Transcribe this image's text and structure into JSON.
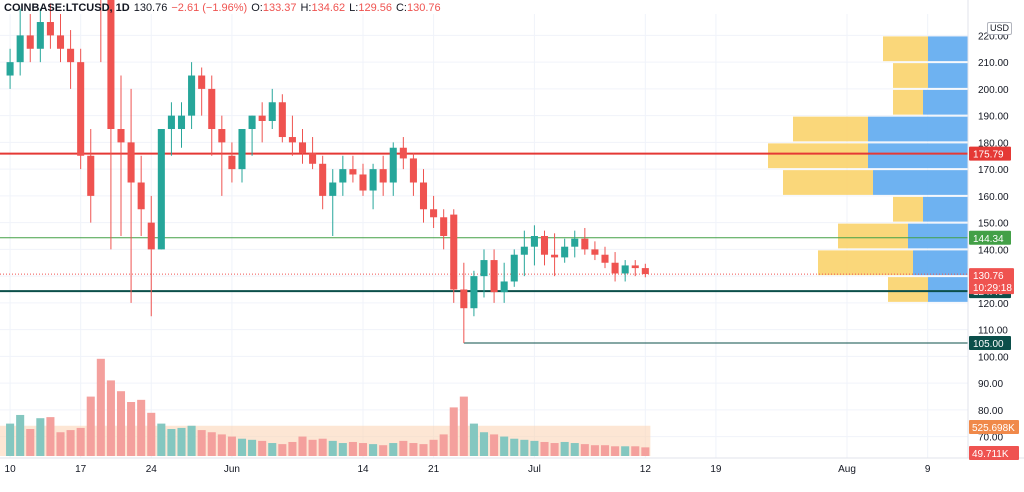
{
  "header": {
    "symbol": "COINBASE:LTCUSD, 1D",
    "price": "130.76",
    "change": "−2.61 (−1.96%)",
    "open_label": "O:",
    "open": "133.37",
    "high_label": "H:",
    "high": "134.62",
    "low_label": "L:",
    "low": "129.56",
    "close_label": "C:",
    "close": "130.76",
    "currency": "USD"
  },
  "colors": {
    "up": "#26a69a",
    "down": "#ef5350",
    "vol_up": "#84c7c0",
    "vol_down": "#f4a09d",
    "vp_up": "#5eaaf0",
    "vp_down": "#f9d36b",
    "resistance": "#e53935",
    "support_upper": "#43a047",
    "support_lower": "#0b4f4a",
    "price_line": "#ef5350",
    "vol_ma_fill": "#fbd1b0"
  },
  "chart_data": {
    "type": "candlestick",
    "y_axis": {
      "ticks": [
        70,
        80,
        90,
        100,
        110,
        120,
        130,
        140,
        150,
        160,
        170,
        180,
        190,
        200,
        210,
        220
      ],
      "tick_labels": [
        "70.00",
        "80.00",
        "90.00",
        "100.00",
        "110.00",
        "120.00",
        "130.00",
        "140.00",
        "150.00",
        "160.00",
        "170.00",
        "180.00",
        "190.00",
        "200.00",
        "210.00",
        "220.00"
      ],
      "range": [
        62,
        228
      ],
      "scale": "linear"
    },
    "x_axis": {
      "labels": [
        {
          "text": "10",
          "day": 0
        },
        {
          "text": "17",
          "day": 7
        },
        {
          "text": "24",
          "day": 14
        },
        {
          "text": "Jun",
          "day": 22
        },
        {
          "text": "14",
          "day": 35
        },
        {
          "text": "21",
          "day": 42
        },
        {
          "text": "Jul",
          "day": 52
        },
        {
          "text": "12",
          "day": 63
        },
        {
          "text": "19",
          "day": 70
        },
        {
          "text": "Aug",
          "day": 83
        },
        {
          "text": "9",
          "day": 91
        }
      ],
      "start": "2021-05-10",
      "range": [
        -1,
        95
      ]
    },
    "candles": [
      [
        0,
        205,
        215,
        200,
        210
      ],
      [
        1,
        210,
        230,
        205,
        220
      ],
      [
        2,
        220,
        228,
        210,
        215
      ],
      [
        3,
        215,
        230,
        210,
        225
      ],
      [
        4,
        225,
        232,
        215,
        220
      ],
      [
        5,
        220,
        228,
        210,
        215
      ],
      [
        6,
        215,
        222,
        200,
        210
      ],
      [
        7,
        210,
        215,
        170,
        175
      ],
      [
        8,
        175,
        185,
        150,
        160
      ],
      [
        9,
        260,
        275,
        210,
        250
      ],
      [
        10,
        250,
        255,
        140,
        185
      ],
      [
        11,
        185,
        205,
        145,
        180
      ],
      [
        12,
        180,
        200,
        120,
        165
      ],
      [
        13,
        165,
        175,
        145,
        155
      ],
      [
        14,
        150,
        160,
        115,
        140
      ],
      [
        15,
        140,
        185,
        140,
        185
      ],
      [
        16,
        185,
        195,
        175,
        190
      ],
      [
        17,
        185,
        195,
        178,
        190
      ],
      [
        18,
        190,
        210,
        185,
        205
      ],
      [
        19,
        205,
        208,
        190,
        200
      ],
      [
        20,
        200,
        205,
        175,
        185
      ],
      [
        21,
        185,
        190,
        160,
        180
      ],
      [
        22,
        175,
        180,
        165,
        170
      ],
      [
        23,
        170,
        185,
        165,
        185
      ],
      [
        24,
        185,
        190,
        175,
        190
      ],
      [
        25,
        190,
        195,
        180,
        188
      ],
      [
        26,
        188,
        200,
        185,
        195
      ],
      [
        27,
        195,
        198,
        180,
        182
      ],
      [
        28,
        182,
        190,
        175,
        180
      ],
      [
        29,
        180,
        185,
        172,
        176
      ],
      [
        30,
        176,
        182,
        170,
        172
      ],
      [
        31,
        172,
        175,
        155,
        160
      ],
      [
        32,
        160,
        170,
        145,
        165
      ],
      [
        33,
        165,
        175,
        160,
        170
      ],
      [
        34,
        170,
        175,
        165,
        168
      ],
      [
        35,
        168,
        172,
        160,
        162
      ],
      [
        36,
        162,
        172,
        155,
        170
      ],
      [
        37,
        170,
        175,
        160,
        165
      ],
      [
        38,
        165,
        180,
        160,
        178
      ],
      [
        39,
        178,
        182,
        170,
        174
      ],
      [
        40,
        174,
        176,
        160,
        165
      ],
      [
        41,
        165,
        170,
        150,
        155
      ],
      [
        42,
        155,
        160,
        148,
        152
      ],
      [
        43,
        152,
        155,
        140,
        145
      ],
      [
        44,
        153,
        155,
        120,
        125
      ],
      [
        45,
        125,
        135,
        105,
        118
      ],
      [
        46,
        118,
        132,
        115,
        130
      ],
      [
        47,
        130,
        140,
        122,
        136
      ],
      [
        48,
        136,
        140,
        120,
        124
      ],
      [
        49,
        124,
        135,
        120,
        128
      ],
      [
        50,
        128,
        140,
        126,
        138
      ],
      [
        51,
        138,
        147,
        130,
        141
      ],
      [
        52,
        141,
        149,
        134,
        145
      ],
      [
        53,
        145,
        147,
        134,
        138
      ],
      [
        54,
        138,
        146,
        130,
        137
      ],
      [
        55,
        137,
        144,
        135,
        141
      ],
      [
        56,
        141,
        147,
        137,
        144
      ],
      [
        57,
        144,
        148,
        138,
        140
      ],
      [
        58,
        140,
        143,
        136,
        138
      ],
      [
        59,
        138,
        141,
        133,
        135
      ],
      [
        60,
        135,
        139,
        128,
        131
      ],
      [
        61,
        131,
        136,
        128,
        134
      ],
      [
        62,
        134,
        136,
        130,
        133
      ],
      [
        63,
        133,
        134.62,
        129.56,
        130.76
      ]
    ],
    "volume_mode": "relative",
    "volumes": [
      [
        0,
        0.3
      ],
      [
        1,
        0.38
      ],
      [
        2,
        0.25
      ],
      [
        3,
        0.35
      ],
      [
        4,
        0.36
      ],
      [
        5,
        0.22
      ],
      [
        6,
        0.24
      ],
      [
        7,
        0.26
      ],
      [
        8,
        0.55
      ],
      [
        9,
        0.9
      ],
      [
        10,
        0.7
      ],
      [
        11,
        0.6
      ],
      [
        12,
        0.5
      ],
      [
        13,
        0.52
      ],
      [
        14,
        0.4
      ],
      [
        15,
        0.3
      ],
      [
        16,
        0.25
      ],
      [
        17,
        0.26
      ],
      [
        18,
        0.28
      ],
      [
        19,
        0.24
      ],
      [
        20,
        0.22
      ],
      [
        21,
        0.2
      ],
      [
        22,
        0.18
      ],
      [
        23,
        0.16
      ],
      [
        24,
        0.15
      ],
      [
        25,
        0.14
      ],
      [
        26,
        0.12
      ],
      [
        27,
        0.11
      ],
      [
        28,
        0.13
      ],
      [
        29,
        0.18
      ],
      [
        30,
        0.15
      ],
      [
        31,
        0.16
      ],
      [
        32,
        0.14
      ],
      [
        33,
        0.12
      ],
      [
        34,
        0.13
      ],
      [
        35,
        0.12
      ],
      [
        36,
        0.11
      ],
      [
        37,
        0.1
      ],
      [
        38,
        0.12
      ],
      [
        39,
        0.14
      ],
      [
        40,
        0.12
      ],
      [
        41,
        0.11
      ],
      [
        42,
        0.15
      ],
      [
        43,
        0.2
      ],
      [
        44,
        0.45
      ],
      [
        45,
        0.55
      ],
      [
        46,
        0.3
      ],
      [
        47,
        0.22
      ],
      [
        48,
        0.2
      ],
      [
        49,
        0.18
      ],
      [
        50,
        0.16
      ],
      [
        51,
        0.15
      ],
      [
        52,
        0.14
      ],
      [
        53,
        0.13
      ],
      [
        54,
        0.12
      ],
      [
        55,
        0.13
      ],
      [
        56,
        0.12
      ],
      [
        57,
        0.11
      ],
      [
        58,
        0.1
      ],
      [
        59,
        0.1
      ],
      [
        60,
        0.09
      ],
      [
        61,
        0.09
      ],
      [
        62,
        0.09
      ],
      [
        63,
        0.08
      ]
    ],
    "volume_ma_level": 0.28,
    "horizontal_levels": [
      {
        "price": 175.79,
        "label": "175.79",
        "color": "#e53935",
        "width": 2,
        "from_day": -1
      },
      {
        "price": 144.34,
        "label": "144.34",
        "color": "#43a047",
        "width": 1,
        "from_day": -1
      },
      {
        "price": 124.4,
        "label": "124.40",
        "color": "#0b4f4a",
        "width": 2,
        "from_day": -1
      },
      {
        "price": 105.0,
        "label": "105.00",
        "color": "#0b4f4a",
        "width": 1,
        "from_day": 45
      }
    ],
    "current_price": {
      "label": "130.76",
      "countdown": "10:29:18",
      "price": 130.76
    },
    "volume_badges": [
      {
        "label": "525.698K",
        "color": "#f0894a"
      },
      {
        "label": "49.711K",
        "color": "#ef5350"
      }
    ],
    "volume_profile": {
      "mode": "relative",
      "rows": [
        {
          "low": 210,
          "high": 220,
          "up": 0.4,
          "down": 0.45
        },
        {
          "low": 200,
          "high": 210,
          "up": 0.4,
          "down": 0.35
        },
        {
          "low": 190,
          "high": 200,
          "up": 0.45,
          "down": 0.3
        },
        {
          "low": 180,
          "high": 190,
          "up": 1.0,
          "down": 0.75
        },
        {
          "low": 170,
          "high": 180,
          "up": 1.0,
          "down": 1.0
        },
        {
          "low": 160,
          "high": 170,
          "up": 0.95,
          "down": 0.9
        },
        {
          "low": 150,
          "high": 160,
          "up": 0.45,
          "down": 0.3
        },
        {
          "low": 140,
          "high": 150,
          "up": 0.6,
          "down": 0.7
        },
        {
          "low": 130,
          "high": 140,
          "up": 0.55,
          "down": 0.95
        },
        {
          "low": 120,
          "high": 130,
          "up": 0.4,
          "down": 0.4
        }
      ]
    }
  }
}
